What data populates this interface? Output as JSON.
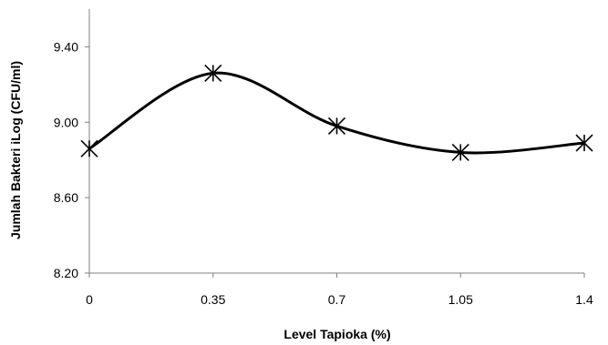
{
  "chart_data": {
    "type": "line",
    "x": [
      0,
      0.35,
      0.7,
      1.05,
      1.4
    ],
    "x_tick_labels": [
      "0",
      "0.35",
      "0.7",
      "1.05",
      "1.4"
    ],
    "series": [
      {
        "values": [
          8.86,
          9.26,
          8.98,
          8.84,
          8.89
        ]
      }
    ],
    "xlabel": "Level Tapioka (%)",
    "ylabel": "Jumlah Bakteri iLog (CFU/ml)",
    "ylim": [
      8.2,
      9.6
    ],
    "y_ticks": [
      8.2,
      8.6,
      9.0,
      9.4
    ],
    "y_tick_labels": [
      "8.20",
      "8.60",
      "9.00",
      "9.40"
    ],
    "marker": "asterisk",
    "smooth": true,
    "grid": false,
    "line_color": "#000000",
    "axis_color": "#808080"
  }
}
